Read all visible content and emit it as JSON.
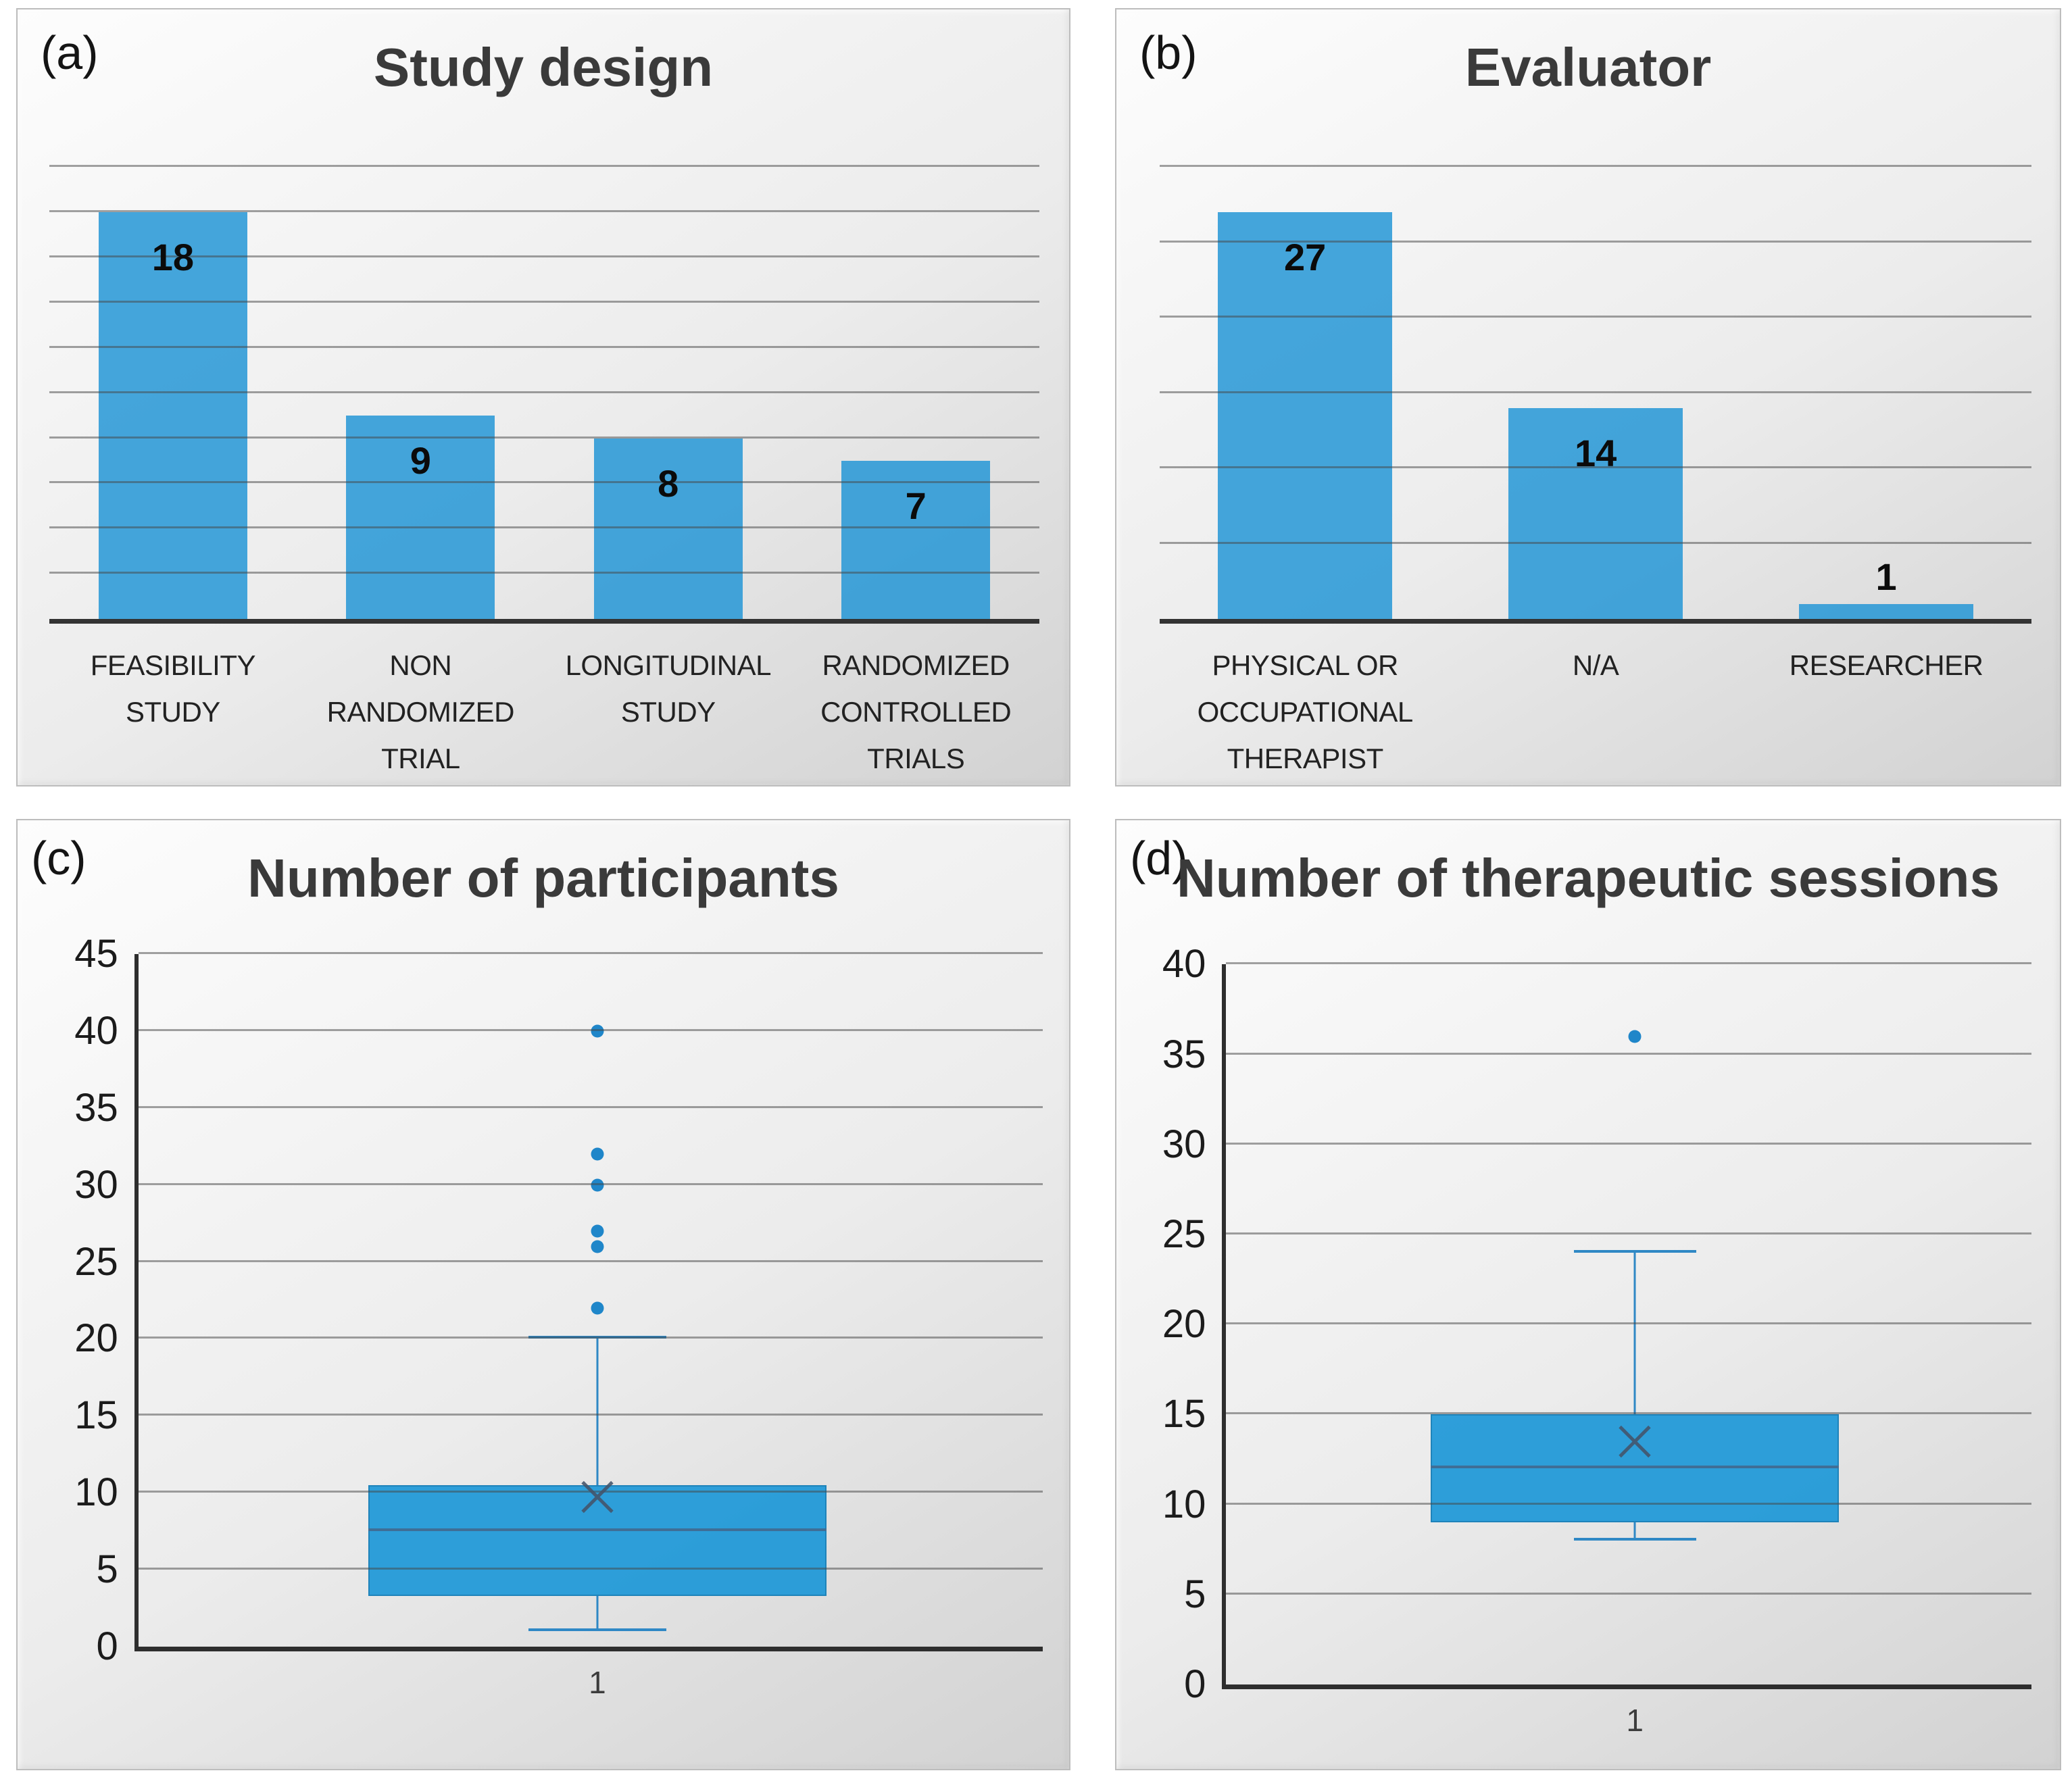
{
  "style": {
    "bar_fill": "#42a2d9",
    "box_fill": "#289dd8",
    "median_color": "#3f6e96",
    "whisker_color": "#2f88c5",
    "outlier_color": "#1f86c9",
    "mean_marker_color": "#44546a",
    "grid_color": "#9a9a9a",
    "axis_color": "#2e2e2e",
    "title_color": "#3a3a3a"
  },
  "chart_data": [
    {
      "type": "bar",
      "panel_label": "(a)",
      "title": "Study design",
      "categories": [
        "FEASIBILITY STUDY",
        "NON\nRANDOMIZED\nTRIAL",
        "LONGITUDINAL\nSTUDY",
        "RANDOMIZED\nCONTROLLED\nTRIALS"
      ],
      "values": [
        18,
        9,
        8,
        7
      ],
      "ylim": [
        0,
        20
      ],
      "grid_step": 2,
      "grid": true,
      "value_labels": true
    },
    {
      "type": "bar",
      "panel_label": "(b)",
      "title": "Evaluator",
      "categories": [
        "PHYSICAL OR\nOCCUPATIONAL\nTHERAPIST",
        "N/A",
        "RESEARCHER"
      ],
      "values": [
        27,
        14,
        1
      ],
      "ylim": [
        0,
        30
      ],
      "grid_step": 5,
      "grid": true,
      "value_labels": true
    },
    {
      "type": "box",
      "panel_label": "(c)",
      "title": "Number of participants",
      "x_categories": [
        "1"
      ],
      "ylim": [
        0,
        45
      ],
      "tick_step": 5,
      "grid": true,
      "series": [
        {
          "name": "1",
          "q1": 3.3,
          "median": 7.5,
          "q3": 10.5,
          "whisker_low": 1,
          "whisker_high": 20,
          "mean": 9.7,
          "outliers": [
            22,
            26,
            27,
            30,
            32,
            40
          ]
        }
      ]
    },
    {
      "type": "box",
      "panel_label": "(d)",
      "title": "Number of therapeutic sessions",
      "x_categories": [
        "1"
      ],
      "ylim": [
        0,
        40
      ],
      "tick_step": 5,
      "grid": true,
      "series": [
        {
          "name": "1",
          "q1": 9,
          "median": 12,
          "q3": 15,
          "whisker_low": 8,
          "whisker_high": 24,
          "mean": 13.5,
          "outliers": [
            36
          ]
        }
      ]
    }
  ]
}
